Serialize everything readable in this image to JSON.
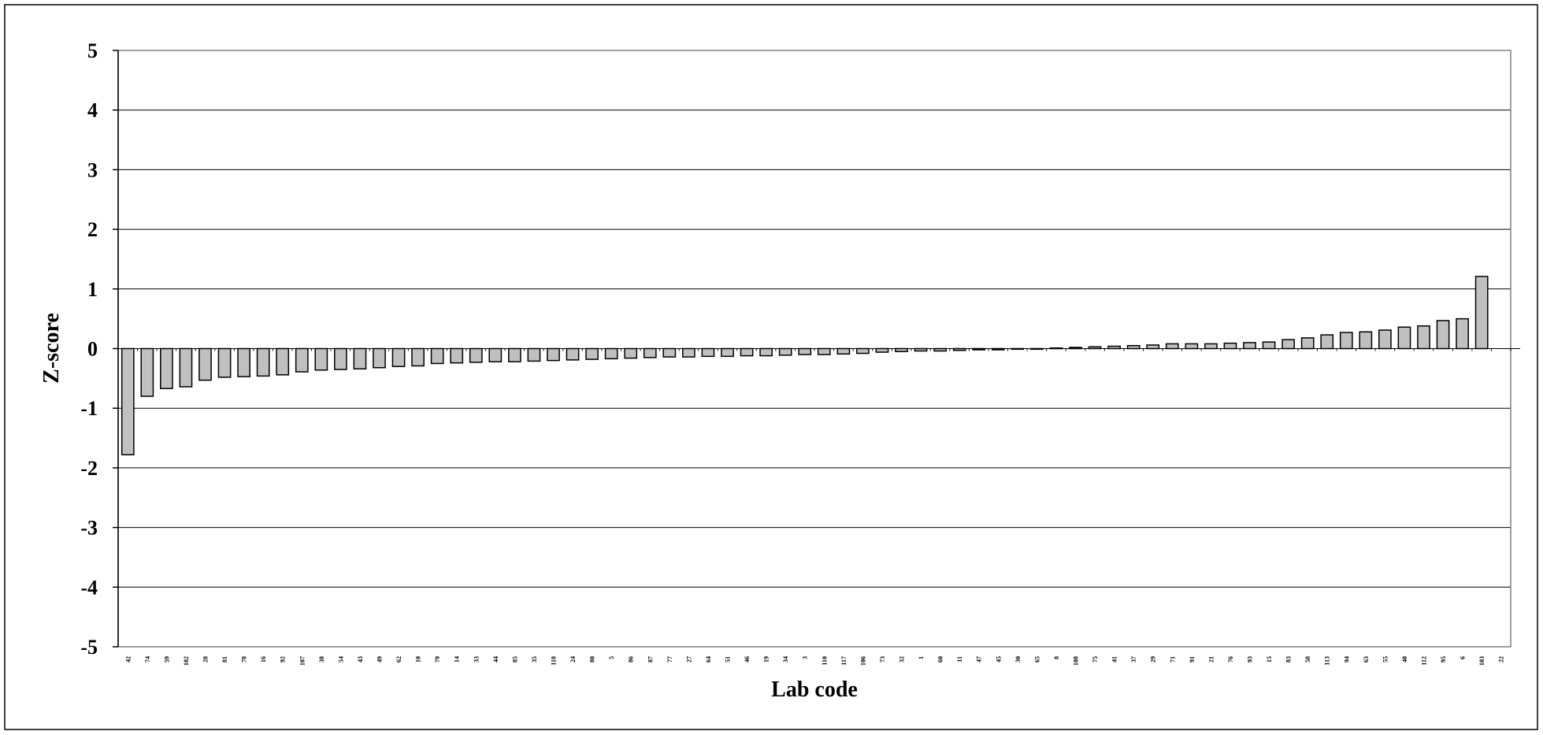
{
  "chart_data": {
    "type": "bar",
    "title": "",
    "xlabel": "Lab code",
    "ylabel": "Z-score",
    "ylim": [
      -5,
      5
    ],
    "yticks": [
      5,
      4,
      3,
      2,
      1,
      0,
      -1,
      -2,
      -3,
      -4,
      -5
    ],
    "grid": true,
    "legend": "none",
    "colors": {
      "bar_fill": "#c0c0c0",
      "bar_stroke": "#000000",
      "grid": "#000000",
      "frame": "#000000"
    },
    "categories": [
      "42",
      "74",
      "59",
      "102",
      "28",
      "81",
      "78",
      "16",
      "92",
      "107",
      "38",
      "54",
      "43",
      "49",
      "62",
      "10",
      "79",
      "14",
      "33",
      "44",
      "85",
      "35",
      "118",
      "24",
      "80",
      "5",
      "86",
      "87",
      "77",
      "27",
      "64",
      "51",
      "46",
      "19",
      "34",
      "3",
      "110",
      "117",
      "106",
      "73",
      "32",
      "1",
      "60",
      "11",
      "47",
      "45",
      "30",
      "65",
      "8",
      "108",
      "75",
      "41",
      "37",
      "29",
      "71",
      "91",
      "21",
      "76",
      "93",
      "15",
      "83",
      "58",
      "113",
      "94",
      "63",
      "55",
      "40",
      "112",
      "95",
      "6",
      "103",
      "22"
    ],
    "values": [
      -1.78,
      -0.8,
      -0.67,
      -0.64,
      -0.53,
      -0.48,
      -0.47,
      -0.46,
      -0.44,
      -0.39,
      -0.36,
      -0.35,
      -0.34,
      -0.32,
      -0.3,
      -0.29,
      -0.25,
      -0.24,
      -0.23,
      -0.22,
      -0.22,
      -0.21,
      -0.2,
      -0.19,
      -0.18,
      -0.17,
      -0.16,
      -0.15,
      -0.14,
      -0.14,
      -0.13,
      -0.13,
      -0.12,
      -0.12,
      -0.11,
      -0.1,
      -0.1,
      -0.09,
      -0.08,
      -0.06,
      -0.05,
      -0.04,
      -0.04,
      -0.03,
      -0.02,
      -0.02,
      -0.01,
      -0.01,
      0.01,
      0.02,
      0.03,
      0.04,
      0.05,
      0.06,
      0.08,
      0.08,
      0.08,
      0.09,
      0.1,
      0.11,
      0.15,
      0.18,
      0.23,
      0.27,
      0.28,
      0.31,
      0.36,
      0.38,
      0.47,
      0.5,
      1.21,
      null
    ]
  }
}
